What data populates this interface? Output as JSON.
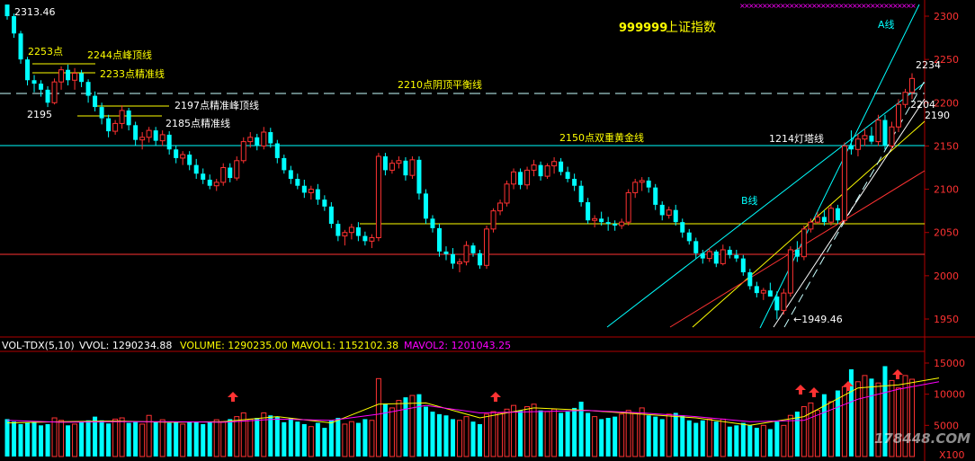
{
  "chart_data": {
    "type": "candlestick",
    "symbol": "999999",
    "title": "上证指数",
    "colors": {
      "up": "#ff3232",
      "down": "#00ffff",
      "ma_vol1": "#ffff00",
      "ma_vol2": "#ff00ff",
      "axis": "#b00000"
    },
    "price_axis": {
      "min": 1930,
      "max": 2310,
      "ticks": [
        1950,
        2000,
        2050,
        2100,
        2150,
        2200,
        2250,
        2300
      ]
    },
    "volume_axis": {
      "min": 0,
      "max": 16000,
      "ticks": [
        5000,
        10000,
        15000
      ],
      "unit_label": "X100"
    },
    "candles": [
      [
        2313.46,
        2313.46,
        2296,
        2300
      ],
      [
        2300,
        2303,
        2275,
        2280
      ],
      [
        2280,
        2283,
        2245,
        2250
      ],
      [
        2250,
        2253,
        2220,
        2226
      ],
      [
        2226,
        2232,
        2212,
        2222
      ],
      [
        2222,
        2226,
        2207,
        2215
      ],
      [
        2215,
        2219,
        2195,
        2200
      ],
      [
        2200,
        2228,
        2198,
        2224
      ],
      [
        2224,
        2242,
        2215,
        2238
      ],
      [
        2238,
        2244,
        2220,
        2226
      ],
      [
        2226,
        2240,
        2215,
        2234
      ],
      [
        2234,
        2238,
        2218,
        2224
      ],
      [
        2224,
        2227,
        2200,
        2208
      ],
      [
        2208,
        2213,
        2190,
        2195
      ],
      [
        2195,
        2200,
        2175,
        2182
      ],
      [
        2182,
        2186,
        2160,
        2167
      ],
      [
        2167,
        2180,
        2163,
        2176
      ],
      [
        2176,
        2197,
        2170,
        2191
      ],
      [
        2191,
        2194,
        2168,
        2174
      ],
      [
        2174,
        2178,
        2150,
        2157
      ],
      [
        2157,
        2166,
        2146,
        2160
      ],
      [
        2160,
        2172,
        2154,
        2168
      ],
      [
        2168,
        2172,
        2150,
        2156
      ],
      [
        2156,
        2168,
        2150,
        2163
      ],
      [
        2163,
        2167,
        2140,
        2146
      ],
      [
        2146,
        2150,
        2130,
        2136
      ],
      [
        2136,
        2144,
        2128,
        2140
      ],
      [
        2140,
        2144,
        2122,
        2128
      ],
      [
        2128,
        2135,
        2112,
        2118
      ],
      [
        2118,
        2124,
        2106,
        2111
      ],
      [
        2111,
        2117,
        2100,
        2104
      ],
      [
        2104,
        2112,
        2098,
        2108
      ],
      [
        2108,
        2130,
        2104,
        2125
      ],
      [
        2125,
        2130,
        2108,
        2113
      ],
      [
        2113,
        2138,
        2110,
        2133
      ],
      [
        2133,
        2160,
        2130,
        2155
      ],
      [
        2155,
        2166,
        2148,
        2160
      ],
      [
        2160,
        2164,
        2145,
        2150
      ],
      [
        2150,
        2172,
        2146,
        2166
      ],
      [
        2166,
        2171,
        2148,
        2153
      ],
      [
        2153,
        2157,
        2130,
        2136
      ],
      [
        2136,
        2140,
        2118,
        2122
      ],
      [
        2122,
        2127,
        2106,
        2112
      ],
      [
        2112,
        2118,
        2100,
        2104
      ],
      [
        2104,
        2111,
        2090,
        2096
      ],
      [
        2096,
        2104,
        2088,
        2100
      ],
      [
        2100,
        2106,
        2082,
        2088
      ],
      [
        2088,
        2093,
        2075,
        2080
      ],
      [
        2080,
        2085,
        2055,
        2060
      ],
      [
        2060,
        2064,
        2040,
        2046
      ],
      [
        2046,
        2053,
        2035,
        2050
      ],
      [
        2050,
        2060,
        2042,
        2056
      ],
      [
        2056,
        2062,
        2040,
        2046
      ],
      [
        2046,
        2051,
        2035,
        2040
      ],
      [
        2040,
        2048,
        2032,
        2044
      ],
      [
        2044,
        2142,
        2040,
        2138
      ],
      [
        2138,
        2142,
        2116,
        2122
      ],
      [
        2122,
        2134,
        2118,
        2130
      ],
      [
        2130,
        2138,
        2124,
        2133
      ],
      [
        2133,
        2137,
        2110,
        2116
      ],
      [
        2116,
        2138,
        2112,
        2134
      ],
      [
        2134,
        2138,
        2088,
        2095
      ],
      [
        2095,
        2100,
        2060,
        2066
      ],
      [
        2066,
        2070,
        2050,
        2055
      ],
      [
        2055,
        2060,
        2022,
        2028
      ],
      [
        2028,
        2034,
        2018,
        2025
      ],
      [
        2025,
        2032,
        2008,
        2014
      ],
      [
        2014,
        2020,
        2004,
        2016
      ],
      [
        2016,
        2040,
        2012,
        2035
      ],
      [
        2035,
        2038,
        2022,
        2026
      ],
      [
        2026,
        2030,
        2008,
        2012
      ],
      [
        2012,
        2058,
        2008,
        2054
      ],
      [
        2054,
        2078,
        2050,
        2075
      ],
      [
        2075,
        2088,
        2070,
        2084
      ],
      [
        2084,
        2110,
        2080,
        2106
      ],
      [
        2106,
        2124,
        2100,
        2120
      ],
      [
        2120,
        2124,
        2100,
        2105
      ],
      [
        2105,
        2126,
        2100,
        2122
      ],
      [
        2122,
        2134,
        2115,
        2128
      ],
      [
        2128,
        2132,
        2110,
        2115
      ],
      [
        2115,
        2130,
        2112,
        2127
      ],
      [
        2127,
        2137,
        2118,
        2132
      ],
      [
        2132,
        2136,
        2116,
        2120
      ],
      [
        2120,
        2126,
        2108,
        2112
      ],
      [
        2112,
        2118,
        2098,
        2104
      ],
      [
        2104,
        2110,
        2080,
        2085
      ],
      [
        2085,
        2090,
        2060,
        2064
      ],
      [
        2064,
        2070,
        2056,
        2066
      ],
      [
        2066,
        2074,
        2058,
        2062
      ],
      [
        2062,
        2068,
        2052,
        2060
      ],
      [
        2060,
        2064,
        2052,
        2058
      ],
      [
        2058,
        2066,
        2054,
        2062
      ],
      [
        2062,
        2100,
        2058,
        2096
      ],
      [
        2096,
        2112,
        2090,
        2108
      ],
      [
        2108,
        2114,
        2098,
        2110
      ],
      [
        2110,
        2114,
        2096,
        2102
      ],
      [
        2102,
        2106,
        2076,
        2082
      ],
      [
        2082,
        2086,
        2064,
        2070
      ],
      [
        2070,
        2080,
        2066,
        2076
      ],
      [
        2076,
        2082,
        2058,
        2062
      ],
      [
        2062,
        2066,
        2044,
        2050
      ],
      [
        2050,
        2054,
        2036,
        2040
      ],
      [
        2040,
        2044,
        2020,
        2026
      ],
      [
        2026,
        2030,
        2014,
        2020
      ],
      [
        2020,
        2032,
        2016,
        2028
      ],
      [
        2028,
        2030,
        2010,
        2014
      ],
      [
        2014,
        2036,
        2012,
        2030
      ],
      [
        2030,
        2034,
        2020,
        2024
      ],
      [
        2024,
        2030,
        2016,
        2020
      ],
      [
        2020,
        2024,
        2000,
        2004
      ],
      [
        2004,
        2008,
        1984,
        1988
      ],
      [
        1988,
        1993,
        1975,
        1980
      ],
      [
        1980,
        1986,
        1972,
        1983
      ],
      [
        1983,
        1992,
        1978,
        1976
      ],
      [
        1976,
        1982,
        1949.46,
        1960
      ],
      [
        1960,
        1985,
        1955,
        1980
      ],
      [
        1980,
        2034,
        1976,
        2030
      ],
      [
        2030,
        2040,
        2016,
        2022
      ],
      [
        2022,
        2058,
        2018,
        2054
      ],
      [
        2054,
        2066,
        2050,
        2062
      ],
      [
        2062,
        2074,
        2060,
        2068
      ],
      [
        2068,
        2076,
        2058,
        2062
      ],
      [
        2062,
        2082,
        2058,
        2078
      ],
      [
        2078,
        2082,
        2060,
        2064
      ],
      [
        2064,
        2154,
        2060,
        2150
      ],
      [
        2150,
        2168,
        2140,
        2146
      ],
      [
        2146,
        2164,
        2138,
        2158
      ],
      [
        2158,
        2170,
        2150,
        2162
      ],
      [
        2162,
        2172,
        2152,
        2155
      ],
      [
        2155,
        2186,
        2150,
        2180
      ],
      [
        2180,
        2186,
        2146,
        2150
      ],
      [
        2150,
        2178,
        2146,
        2172
      ],
      [
        2172,
        2204,
        2166,
        2198
      ],
      [
        2198,
        2216,
        2194,
        2212
      ],
      [
        2212,
        2234,
        2204,
        2228
      ]
    ],
    "volume": [
      6000,
      5600,
      5200,
      5400,
      5600,
      5000,
      5200,
      6200,
      5800,
      5000,
      5200,
      5600,
      5800,
      6400,
      5800,
      5300,
      6000,
      6200,
      5400,
      5600,
      5200,
      6600,
      5600,
      5900,
      5400,
      5600,
      5200,
      5600,
      5500,
      5200,
      5600,
      5900,
      5600,
      6000,
      6400,
      7000,
      6000,
      6200,
      7000,
      6600,
      6400,
      5500,
      6200,
      5600,
      5200,
      4800,
      5400,
      4600,
      5800,
      6200,
      5200,
      5600,
      5400,
      6000,
      5800,
      12500,
      8500,
      7800,
      9000,
      9500,
      9800,
      10000,
      8000,
      7200,
      6800,
      6600,
      6000,
      5800,
      6400,
      5600,
      5200,
      6800,
      7200,
      7000,
      7600,
      8200,
      7400,
      8000,
      8400,
      7400,
      7200,
      7600,
      7000,
      7200,
      7800,
      8800,
      7000,
      6400,
      6000,
      6200,
      6400,
      6800,
      7400,
      7000,
      7800,
      6600,
      6400,
      6000,
      6800,
      7000,
      6600,
      5800,
      5400,
      5800,
      6000,
      5600,
      6000,
      4800,
      5000,
      5400,
      5000,
      4600,
      5000,
      4400,
      5600,
      5000,
      6600,
      7200,
      8000,
      8600,
      7400,
      10000,
      8800,
      10600,
      11200,
      14000,
      12000,
      13000,
      12500,
      11800,
      14500,
      12200,
      11000,
      13000,
      12400,
      12800
    ],
    "vol_ma_points": [
      [
        0,
        5400,
        5800
      ],
      [
        8,
        5600,
        5500
      ],
      [
        16,
        5700,
        5600
      ],
      [
        24,
        5500,
        5600
      ],
      [
        32,
        5600,
        5500
      ],
      [
        40,
        6400,
        6000
      ],
      [
        48,
        5400,
        5800
      ],
      [
        55,
        8400,
        6800
      ],
      [
        62,
        8600,
        8200
      ],
      [
        70,
        6200,
        7000
      ],
      [
        78,
        7800,
        7200
      ],
      [
        86,
        7400,
        7400
      ],
      [
        94,
        6800,
        7000
      ],
      [
        102,
        6200,
        6400
      ],
      [
        110,
        5000,
        5600
      ],
      [
        118,
        6400,
        5800
      ],
      [
        126,
        11000,
        9200
      ],
      [
        132,
        11500,
        10800
      ],
      [
        138,
        12600,
        12000
      ]
    ],
    "info_bar": {
      "indicator": "VOL-TDX(5,10)",
      "vvol": "VVOL: 1290234.88",
      "volume": "VOLUME: 1290235.00",
      "mavol1": "MAVOL1: 1152102.38",
      "mavol2": "MAVOL2: 1201043.25"
    },
    "annotations": {
      "high": "2313.46",
      "p2253": "2253点",
      "line2244": "2244点峰顶线",
      "line2233": "2233点精准线",
      "p2195": "2195",
      "line2197": "2197点精准峰顶线",
      "line2185": "2185点精准线",
      "line2210": "2210点阴顶平衡线",
      "line2150": "2150点双重黄金线",
      "line1214": "1214灯塔线",
      "lineA": "A线",
      "lineB": "B线",
      "low": "←1949.46",
      "last_high": "2234",
      "p2204": "2204",
      "p2190": "2190"
    },
    "watermark": "178448.COM"
  }
}
